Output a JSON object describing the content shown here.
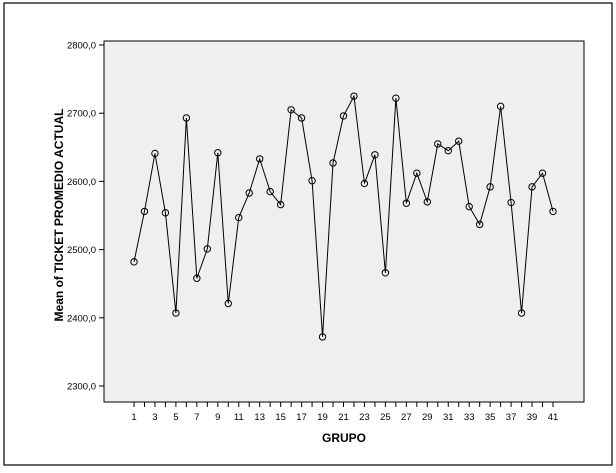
{
  "chart_data": {
    "type": "line",
    "title": "",
    "xlabel": "GRUPO",
    "ylabel": "Mean of TICKET PROMEDIO ACTUAL",
    "x": [
      1,
      2,
      3,
      4,
      5,
      6,
      7,
      8,
      9,
      10,
      11,
      12,
      13,
      14,
      15,
      16,
      17,
      18,
      19,
      20,
      21,
      22,
      23,
      24,
      25,
      26,
      27,
      28,
      29,
      30,
      31,
      32,
      33,
      34,
      35,
      36,
      37,
      38,
      39,
      40,
      41
    ],
    "x_tick_labels": [
      "1",
      "3",
      "5",
      "7",
      "9",
      "11",
      "13",
      "15",
      "17",
      "19",
      "21",
      "23",
      "25",
      "27",
      "29",
      "31",
      "33",
      "35",
      "37",
      "39",
      "41"
    ],
    "y_tick_values": [
      2300,
      2400,
      2500,
      2600,
      2700,
      2800
    ],
    "y_tick_labels": [
      "2300,0",
      "2400,0",
      "2500,0",
      "2600,0",
      "2700,0",
      "2800,0"
    ],
    "ylim": [
      2290,
      2805
    ],
    "grid": false,
    "plot_background": "#efefef",
    "line_color": "#000000",
    "marker": "open-circle",
    "series": [
      {
        "values": [
          2482,
          2556,
          2641,
          2554,
          2407,
          2693,
          2458,
          2501,
          2642,
          2421,
          2547,
          2583,
          2633,
          2585,
          2566,
          2705,
          2693,
          2601,
          2372,
          2627,
          2696,
          2725,
          2597,
          2639,
          2466,
          2722,
          2568,
          2612,
          2570,
          2655,
          2645,
          2659,
          2563,
          2537,
          2592,
          2710,
          2569,
          2407,
          2592,
          2612,
          2556
        ]
      }
    ]
  }
}
